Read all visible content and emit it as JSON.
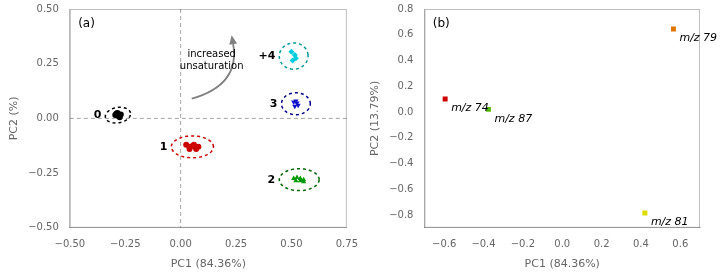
{
  "chart_data": [
    {
      "type": "scatter",
      "title": "(a)",
      "xlabel": "PC1 (84.36%)",
      "ylabel": "PC2 (%)",
      "xlim": [
        -0.5,
        0.75
      ],
      "ylim": [
        -0.5,
        0.5
      ],
      "xticks": [
        {
          "value": -0.5,
          "label": "−0.50"
        },
        {
          "value": -0.25,
          "label": "−0.25"
        },
        {
          "value": 0.0,
          "label": "0.00"
        },
        {
          "value": 0.25,
          "label": "0.25"
        },
        {
          "value": 0.5,
          "label": "0.50"
        },
        {
          "value": 0.75,
          "label": "0.75"
        }
      ],
      "yticks": [
        {
          "value": -0.5,
          "label": "−0.50"
        },
        {
          "value": -0.25,
          "label": "−0.25"
        },
        {
          "value": 0.0,
          "label": "0.00"
        },
        {
          "value": 0.25,
          "label": "0.25"
        },
        {
          "value": 0.5,
          "label": "0.50"
        }
      ],
      "grid": false,
      "hlines": [
        0
      ],
      "vlines": [
        0
      ],
      "series": [
        {
          "name": "0",
          "color": "#000000",
          "marker": "circle",
          "x": [
            -0.285,
            -0.295,
            -0.28,
            -0.27,
            -0.275,
            -0.29,
            -0.283
          ],
          "values": [
            0.025,
            0.015,
            0.01,
            0.018,
            0.005,
            0.022,
            0.015
          ],
          "ellipse": {
            "center": [
              -0.283,
              0.015
            ],
            "width": 0.115,
            "height": 0.07,
            "angle": 10,
            "color": "#000000"
          }
        },
        {
          "name": "1",
          "color": "#cc0000",
          "marker": "circle",
          "x": [
            0.025,
            0.04,
            0.055,
            0.065,
            0.07,
            0.08,
            0.04,
            0.06
          ],
          "values": [
            -0.12,
            -0.13,
            -0.125,
            -0.13,
            -0.14,
            -0.13,
            -0.14,
            -0.12
          ],
          "ellipse": {
            "center": [
              0.053,
              -0.13
            ],
            "width": 0.19,
            "height": 0.1,
            "angle": 0,
            "color": "#cc0000"
          }
        },
        {
          "name": "2",
          "color": "#009900",
          "marker": "triangle",
          "x": [
            0.51,
            0.525,
            0.54,
            0.555,
            0.52,
            0.54,
            0.555
          ],
          "values": [
            -0.275,
            -0.27,
            -0.275,
            -0.28,
            -0.285,
            -0.285,
            -0.29
          ],
          "ellipse": {
            "center": [
              0.535,
              -0.28
            ],
            "width": 0.18,
            "height": 0.1,
            "angle": 0,
            "color": "#006600"
          }
        },
        {
          "name": "3",
          "color": "#1111cc",
          "marker": "triangle_down",
          "x": [
            0.51,
            0.525,
            0.515,
            0.53,
            0.52
          ],
          "values": [
            0.075,
            0.07,
            0.055,
            0.06,
            0.08
          ],
          "ellipse": {
            "center": [
              0.52,
              0.067
            ],
            "width": 0.13,
            "height": 0.1,
            "angle": 0,
            "color": "#00008b"
          }
        },
        {
          "name": "+4",
          "color": "#00ccdd",
          "marker": "diamond",
          "x": [
            0.5,
            0.515,
            0.505,
            0.52
          ],
          "values": [
            0.305,
            0.29,
            0.265,
            0.275
          ],
          "ellipse": {
            "center": [
              0.51,
              0.285
            ],
            "width": 0.13,
            "height": 0.12,
            "angle": 5,
            "color": "#009999"
          }
        }
      ],
      "arrows": [
        {
          "from": [
            0.05,
            0.09
          ],
          "to": [
            0.23,
            0.38
          ]
        }
      ],
      "annotations": [
        {
          "text": "increased\nunsaturation",
          "x": 0.14,
          "y": 0.265
        }
      ]
    },
    {
      "type": "scatter",
      "title": "(b)",
      "xlabel": "PC1 (84.36%)",
      "ylabel": "PC2 (13.79%)",
      "xlim": [
        -0.7,
        0.7
      ],
      "ylim": [
        -0.9,
        0.8
      ],
      "xticks": [
        {
          "value": -0.6,
          "label": "−0.6"
        },
        {
          "value": -0.4,
          "label": "−0.4"
        },
        {
          "value": -0.2,
          "label": "−0.2"
        },
        {
          "value": 0.0,
          "label": "0.0"
        },
        0.2,
        0.4,
        0.6
      ],
      "yticks": [
        {
          "value": -0.8,
          "label": "−0.8"
        },
        {
          "value": -0.6,
          "label": "−0.6"
        },
        {
          "value": -0.4,
          "label": "−0.4"
        },
        {
          "value": -0.2,
          "label": "−0.2"
        },
        {
          "value": 0.0,
          "label": "0.0"
        },
        0.2,
        0.4,
        0.6,
        0.8
      ],
      "grid": false,
      "series": [
        {
          "name": "m/z 74",
          "color": "#cc0000",
          "marker": "square",
          "x": [
            -0.595
          ],
          "values": [
            0.1
          ]
        },
        {
          "name": "m/z 87",
          "color": "#55bb00",
          "marker": "square",
          "x": [
            -0.375
          ],
          "values": [
            0.02
          ]
        },
        {
          "name": "m/z 79",
          "color": "#dd7700",
          "marker": "square",
          "x": [
            0.565
          ],
          "values": [
            0.645
          ]
        },
        {
          "name": "m/z 81",
          "color": "#dddd00",
          "marker": "square",
          "x": [
            0.42
          ],
          "values": [
            -0.785
          ]
        }
      ]
    }
  ]
}
